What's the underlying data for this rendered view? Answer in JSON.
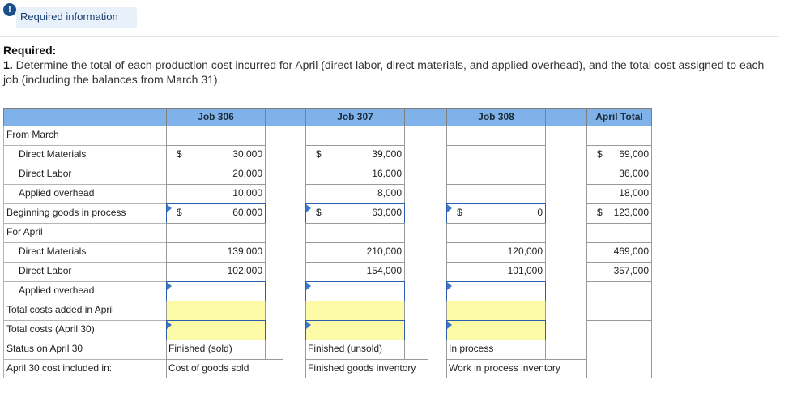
{
  "header": {
    "alert_glyph": "!",
    "badge_label": "Required information"
  },
  "question": {
    "title": "Required:",
    "number": "1.",
    "text": " Determine the total of each production cost incurred for April (direct labor, direct materials, and applied overhead), and the total cost assigned to each job (including the balances from March 31)."
  },
  "table": {
    "headers": {
      "job306": "Job 306",
      "job307": "Job 307",
      "job308": "Job 308",
      "total": "April Total"
    },
    "rows": {
      "from_march": "From March",
      "dm": "Direct Materials",
      "dl": "Direct Labor",
      "ao": "Applied overhead",
      "bgip": "Beginning goods in process",
      "for_april": "For April",
      "dm2": "Direct Materials",
      "dl2": "Direct Labor",
      "ao2": "Applied overhead",
      "tca": "Total costs added in April",
      "tc": "Total costs (April 30)",
      "status": "Status on April 30",
      "included": "April 30 cost included in:"
    },
    "dollar": "$",
    "j306": {
      "dm": "30,000",
      "dl": "20,000",
      "ao": "10,000",
      "bgip": "60,000",
      "dm2": "139,000",
      "dl2": "102,000",
      "status": "Finished (sold)",
      "included": "Cost of goods sold"
    },
    "j307": {
      "dm": "39,000",
      "dl": "16,000",
      "ao": "8,000",
      "bgip": "63,000",
      "dm2": "210,000",
      "dl2": "154,000",
      "status": "Finished (unsold)",
      "included": "Finished goods inventory"
    },
    "j308": {
      "bgip": "0",
      "dm2": "120,000",
      "dl2": "101,000",
      "status": "In process",
      "included": "Work in process inventory"
    },
    "total": {
      "dm": "69,000",
      "dl": "36,000",
      "ao": "18,000",
      "bgip": "123,000",
      "dm2": "469,000",
      "dl2": "357,000",
      "dm_prefix": "$",
      "bgip_prefix": "$"
    }
  }
}
